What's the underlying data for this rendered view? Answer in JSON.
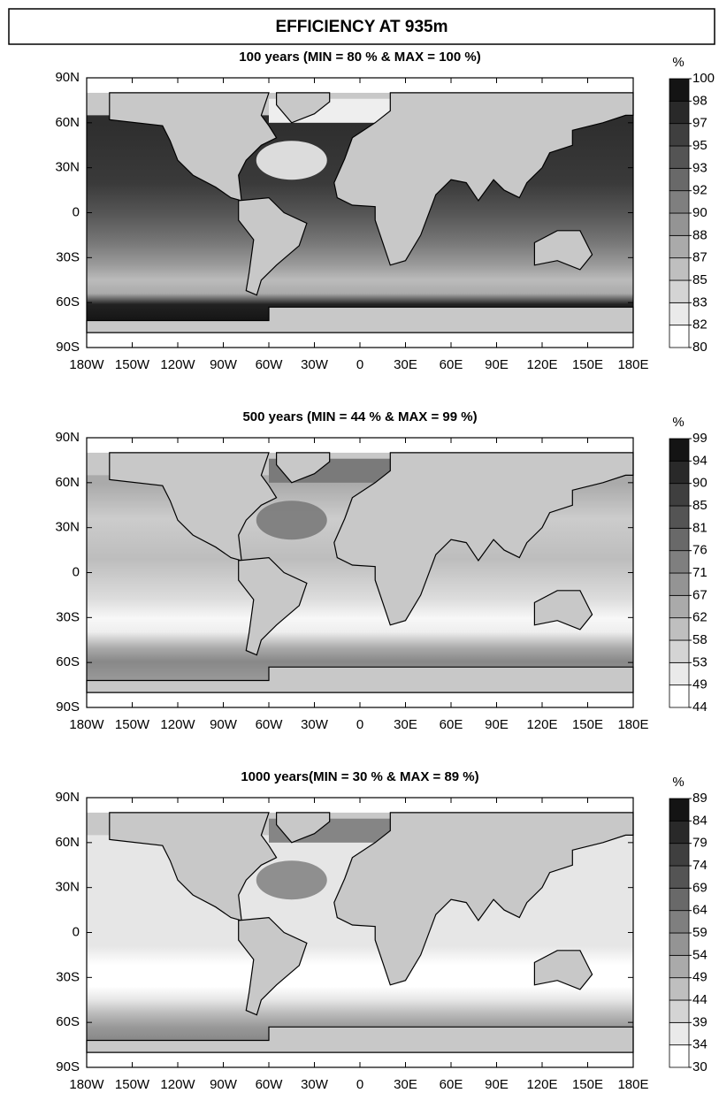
{
  "title": "EFFICIENCY AT 935m",
  "lon_labels": [
    "180W",
    "150W",
    "120W",
    "90W",
    "60W",
    "30W",
    "0",
    "30E",
    "60E",
    "90E",
    "120E",
    "150E",
    "180E"
  ],
  "lat_labels": [
    "90N",
    "60N",
    "30N",
    "0",
    "30S",
    "60S",
    "90S"
  ],
  "panels": [
    {
      "title": "100 years (MIN = 80 % & MAX = 100 %)",
      "colorbar": {
        "unit": "%",
        "levels": [
          80,
          82,
          83,
          85,
          87,
          88,
          90,
          92,
          93,
          95,
          97,
          98,
          100
        ]
      }
    },
    {
      "title": "500 years (MIN = 44 % & MAX = 99 %)",
      "colorbar": {
        "unit": "%",
        "levels": [
          44,
          49,
          53,
          58,
          62,
          67,
          71,
          76,
          81,
          85,
          90,
          94,
          99
        ]
      }
    },
    {
      "title": "1000 years(MIN = 30 % & MAX = 89 %)",
      "colorbar": {
        "unit": "%",
        "levels": [
          30,
          34,
          39,
          44,
          49,
          54,
          59,
          64,
          69,
          74,
          79,
          84,
          89
        ]
      }
    }
  ]
}
